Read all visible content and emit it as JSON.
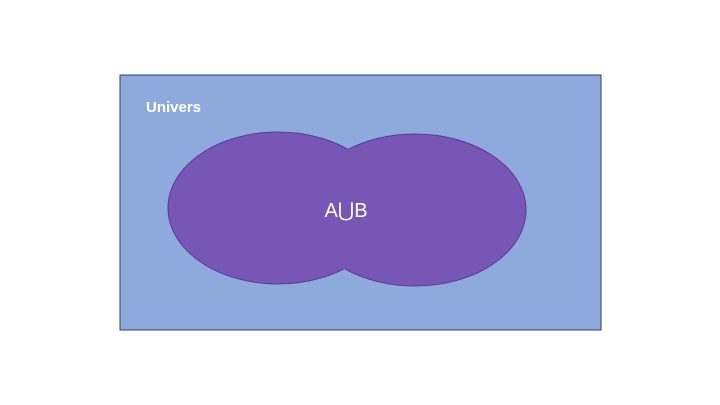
{
  "diagram": {
    "universe_label": "Univers",
    "union_label": "A⋃B",
    "colors": {
      "universe_fill": "#8eaadc",
      "universe_stroke": "#2f3f66",
      "set_fill": "#7856b6",
      "set_stroke": "#5a3a94",
      "text": "#ffffff"
    }
  }
}
